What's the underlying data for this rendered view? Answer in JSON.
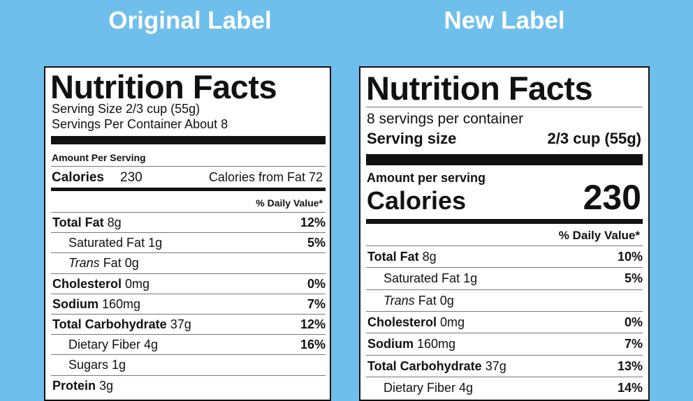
{
  "headings": {
    "original": "Original Label",
    "new": "New Label"
  },
  "original_label": {
    "title": "Nutrition Facts",
    "serving_size": "Serving Size 2/3 cup (55g)",
    "servings_per_container": "Servings Per Container About 8",
    "amount_per_serving": "Amount Per Serving",
    "calories_label": "Calories",
    "calories_value": "230",
    "calories_from_fat": "Calories from Fat 72",
    "daily_value_header": "% Daily Value*",
    "rows": [
      {
        "name": "Total Fat",
        "amount": "8g",
        "dv": "12%"
      },
      {
        "name": "Saturated Fat",
        "amount": "1g",
        "dv": "5%",
        "indent": true
      },
      {
        "name": "Trans",
        "amount": "Fat 0g",
        "indent": true,
        "italic": true
      },
      {
        "name": "Cholesterol",
        "amount": "0mg",
        "dv": "0%"
      },
      {
        "name": "Sodium",
        "amount": "160mg",
        "dv": "7%"
      },
      {
        "name": "Total Carbohydrate",
        "amount": "37g",
        "dv": "12%"
      },
      {
        "name": "Dietary Fiber",
        "amount": "4g",
        "dv": "16%",
        "indent": true
      },
      {
        "name": "Sugars",
        "amount": "1g",
        "indent": true
      },
      {
        "name": "Protein",
        "amount": "3g"
      }
    ]
  },
  "new_label": {
    "title": "Nutrition Facts",
    "servings_per_container": "8 servings per container",
    "serving_size_label": "Serving size",
    "serving_size_value": "2/3 cup (55g)",
    "amount_per_serving": "Amount per serving",
    "calories_label": "Calories",
    "calories_value": "230",
    "daily_value_header": "% Daily Value*",
    "rows": [
      {
        "name": "Total Fat",
        "amount": "8g",
        "dv": "10%"
      },
      {
        "name": "Saturated Fat",
        "amount": "1g",
        "dv": "5%",
        "indent": true
      },
      {
        "name": "Trans",
        "amount": "Fat 0g",
        "indent": true,
        "italic": true
      },
      {
        "name": "Cholesterol",
        "amount": "0mg",
        "dv": "0%"
      },
      {
        "name": "Sodium",
        "amount": "160mg",
        "dv": "7%"
      },
      {
        "name": "Total Carbohydrate",
        "amount": "37g",
        "dv": "13%"
      },
      {
        "name": "Dietary Fiber",
        "amount": "4g",
        "dv": "14%",
        "indent": true
      }
    ]
  }
}
